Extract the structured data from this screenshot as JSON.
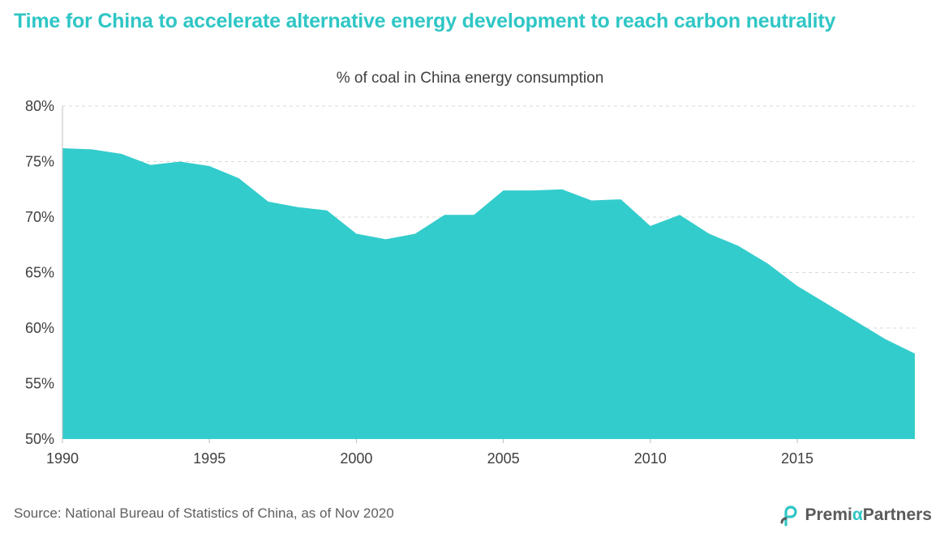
{
  "header": {
    "title": "Time for China to accelerate alternative energy development to reach carbon neutrality"
  },
  "footer": {
    "source": "Source: National Bureau of Statistics of China, as of Nov 2020",
    "logo_text_1": "Premi",
    "logo_text_alpha": "α",
    "logo_text_2": "Partners"
  },
  "colors": {
    "accent": "#33cccc",
    "title": "#2fc6c5",
    "text": "#404040",
    "grid": "#d9d9d9"
  },
  "chart_data": {
    "type": "area",
    "title": "% of coal in China energy consumption",
    "xlabel": "",
    "ylabel": "",
    "x": [
      1990,
      1991,
      1992,
      1993,
      1994,
      1995,
      1996,
      1997,
      1998,
      1999,
      2000,
      2001,
      2002,
      2003,
      2004,
      2005,
      2006,
      2007,
      2008,
      2009,
      2010,
      2011,
      2012,
      2013,
      2014,
      2015,
      2016,
      2017,
      2018,
      2019
    ],
    "series": [
      {
        "name": "",
        "values": [
          76.2,
          76.1,
          75.7,
          74.7,
          75.0,
          74.6,
          73.5,
          71.4,
          70.9,
          70.6,
          68.5,
          68.0,
          68.5,
          70.2,
          70.2,
          72.4,
          72.4,
          72.5,
          71.5,
          71.6,
          69.2,
          70.2,
          68.5,
          67.4,
          65.8,
          63.8,
          62.2,
          60.6,
          59.0,
          57.7
        ]
      }
    ],
    "xlim": [
      1990,
      2019
    ],
    "ylim": [
      50,
      80
    ],
    "x_ticks": [
      1990,
      1995,
      2000,
      2005,
      2010,
      2015
    ],
    "x_tick_labels": [
      "1990",
      "1995",
      "2000",
      "2005",
      "2010",
      "2015"
    ],
    "y_ticks": [
      50,
      55,
      60,
      65,
      70,
      75,
      80
    ],
    "y_tick_labels": [
      "50%",
      "55%",
      "60%",
      "65%",
      "70%",
      "75%",
      "80%"
    ],
    "grid": true
  }
}
